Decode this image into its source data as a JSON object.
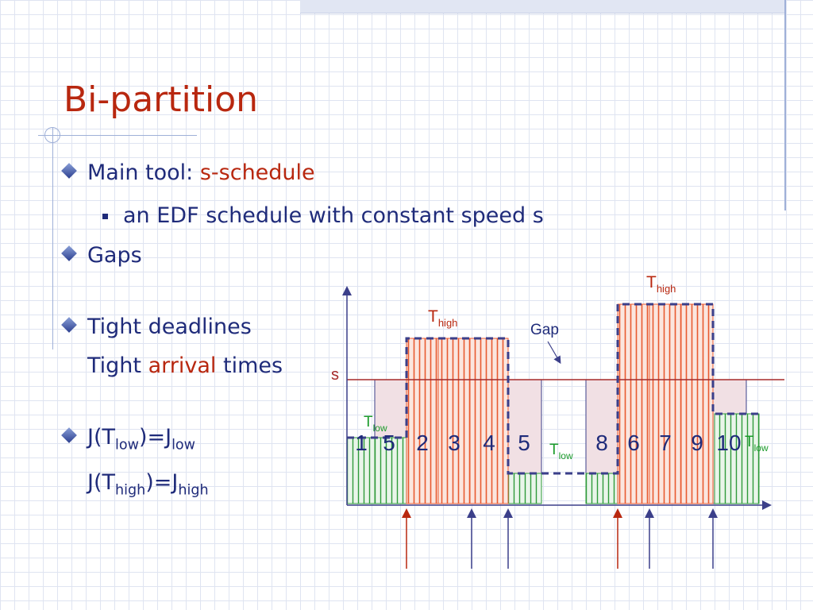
{
  "slide": {
    "title": "Bi-partition",
    "bullets": [
      {
        "text": "Main tool: ",
        "highlight": "s-schedule"
      },
      {
        "text": "an EDF schedule with constant speed s"
      },
      {
        "text": "Gaps"
      },
      {
        "text": "Tight deadlines"
      },
      {
        "pre": "Tight ",
        "highlight": "arrival",
        "post": " times"
      },
      {
        "pre": "J(T",
        "sub1": "low",
        "mid": ")=J",
        "sub2": "low"
      },
      {
        "pre": "J(T",
        "sub1": "high",
        "mid": ")=J",
        "sub2": "high"
      }
    ]
  },
  "diagram": {
    "speed_label": "s",
    "gap_label": "Gap",
    "t_main": "T",
    "sub_high": "high",
    "sub_low": "low",
    "job_labels": [
      "1",
      "5",
      "2",
      "3",
      "4",
      "5",
      "8",
      "6",
      "7",
      "9",
      "10"
    ],
    "colors": {
      "high": "#e85a30",
      "low": "#2e9a3a",
      "dash": "#3b3f8a",
      "speed_line": "#a52a2a",
      "text": "#1f2b7a",
      "red": "#b8270f",
      "green": "#1a9a2a"
    }
  }
}
